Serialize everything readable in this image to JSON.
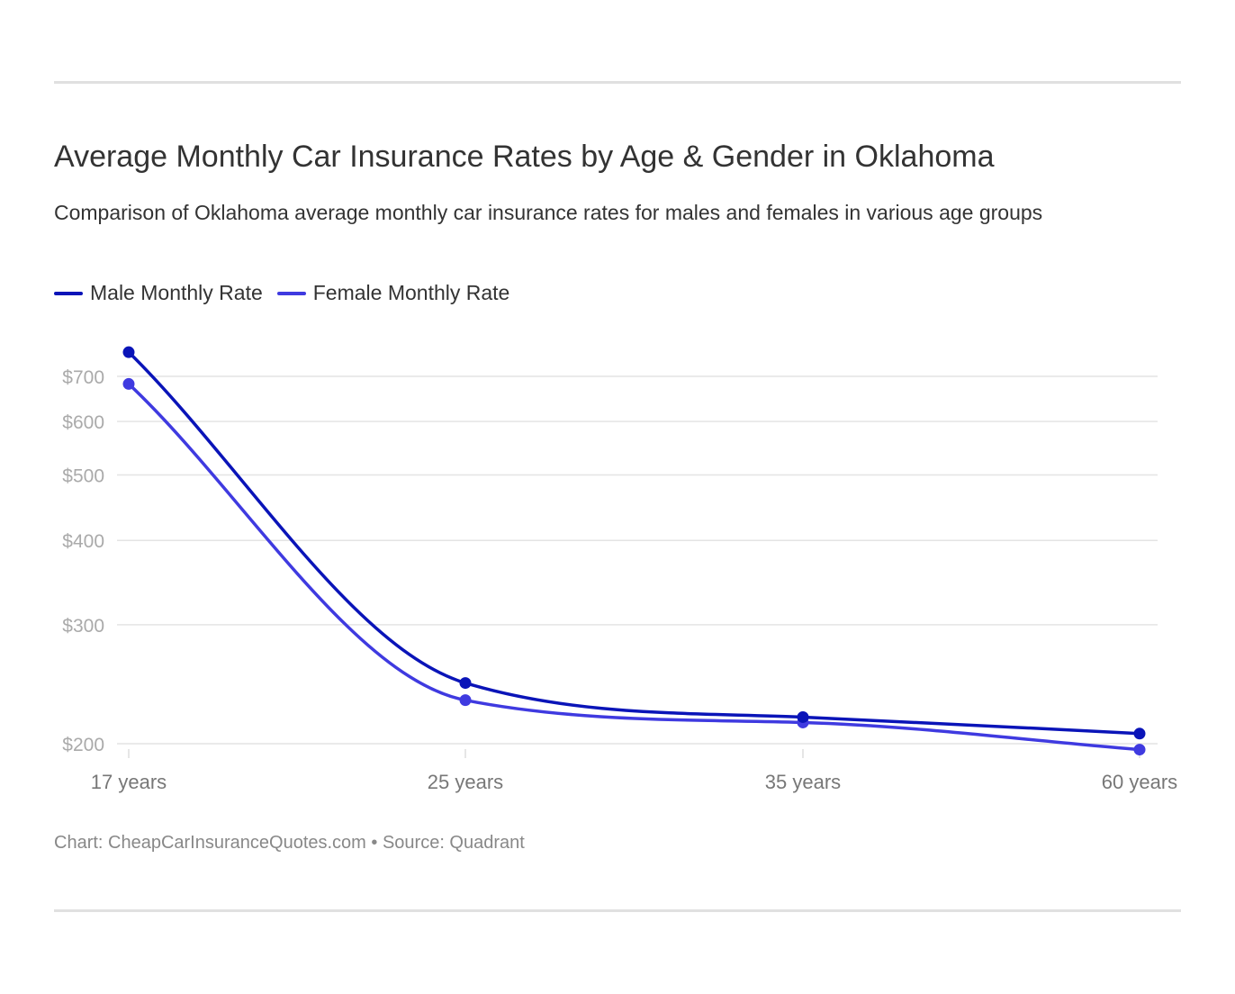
{
  "title": "Average Monthly Car Insurance Rates by Age & Gender in Oklahoma",
  "subtitle": "Comparison of Oklahoma average monthly car insurance rates for males and females in various age groups",
  "footer": "Chart: CheapCarInsuranceQuotes.com • Source: Quadrant",
  "chart_data": {
    "type": "line",
    "title": "Average Monthly Car Insurance Rates by Age & Gender in Oklahoma",
    "categories": [
      "17 years",
      "25 years",
      "35 years",
      "60 years"
    ],
    "y_scale": "log",
    "ylim": [
      190,
      780
    ],
    "y_ticks": [
      200,
      300,
      400,
      500,
      600,
      700
    ],
    "y_tick_labels": [
      "$200",
      "$300",
      "$400",
      "$500",
      "$600",
      "$700"
    ],
    "grid": true,
    "legend_position": "top-left",
    "series": [
      {
        "name": "Male Monthly Rate",
        "color": "#0a14b8",
        "values": [
          760,
          246,
          219,
          207
        ]
      },
      {
        "name": "Female Monthly Rate",
        "color": "#3f3ae0",
        "values": [
          682,
          232,
          215,
          196
        ]
      }
    ]
  }
}
